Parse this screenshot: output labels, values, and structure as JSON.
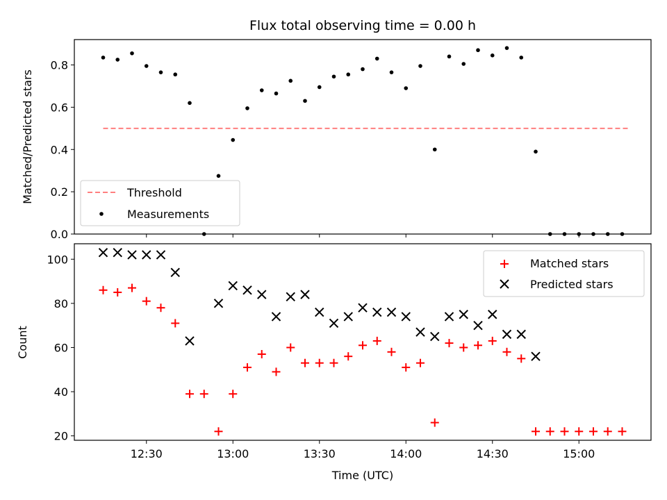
{
  "chart_data": [
    {
      "type": "scatter",
      "title": "Flux total observing time = 0.00 h",
      "ylabel": "Matched/Predicted stars",
      "xlabel": "",
      "ylim": [
        0,
        0.92
      ],
      "yticks": [
        0.0,
        0.2,
        0.4,
        0.6,
        0.8
      ],
      "ytick_labels": [
        "0.0",
        "0.2",
        "0.4",
        "0.6",
        "0.8"
      ],
      "legend_position": "lower-left",
      "threshold": {
        "name": "Threshold",
        "value": 0.5,
        "x_start": "12:15",
        "x_end": "15:17",
        "color": "#ff7f7f",
        "style": "dashed"
      },
      "series": [
        {
          "name": "Measurements",
          "color": "#000000",
          "marker": "dot",
          "points": [
            [
              "12:15",
              0.835
            ],
            [
              "12:20",
              0.825
            ],
            [
              "12:25",
              0.855
            ],
            [
              "12:30",
              0.795
            ],
            [
              "12:35",
              0.765
            ],
            [
              "12:40",
              0.755
            ],
            [
              "12:45",
              0.62
            ],
            [
              "12:50",
              0.0
            ],
            [
              "12:55",
              0.275
            ],
            [
              "13:00",
              0.445
            ],
            [
              "13:05",
              0.595
            ],
            [
              "13:10",
              0.68
            ],
            [
              "13:15",
              0.665
            ],
            [
              "13:20",
              0.725
            ],
            [
              "13:25",
              0.63
            ],
            [
              "13:30",
              0.695
            ],
            [
              "13:35",
              0.745
            ],
            [
              "13:40",
              0.755
            ],
            [
              "13:45",
              0.78
            ],
            [
              "13:50",
              0.83
            ],
            [
              "13:55",
              0.765
            ],
            [
              "14:00",
              0.69
            ],
            [
              "14:05",
              0.795
            ],
            [
              "14:10",
              0.4
            ],
            [
              "14:15",
              0.84
            ],
            [
              "14:20",
              0.805
            ],
            [
              "14:25",
              0.87
            ],
            [
              "14:30",
              0.845
            ],
            [
              "14:35",
              0.88
            ],
            [
              "14:40",
              0.835
            ],
            [
              "14:45",
              0.39
            ],
            [
              "14:50",
              0.0
            ],
            [
              "14:55",
              0.0
            ],
            [
              "15:00",
              0.0
            ],
            [
              "15:05",
              0.0
            ],
            [
              "15:10",
              0.0
            ],
            [
              "15:15",
              0.0
            ]
          ]
        }
      ]
    },
    {
      "type": "scatter",
      "title": "",
      "ylabel": "Count",
      "xlabel": "Time (UTC)",
      "ylim": [
        18,
        107
      ],
      "yticks": [
        20,
        40,
        60,
        80,
        100
      ],
      "ytick_labels": [
        "20",
        "40",
        "60",
        "80",
        "100"
      ],
      "xlim": [
        "12:05",
        "15:25"
      ],
      "xticks": [
        "12:30",
        "13:00",
        "13:30",
        "14:00",
        "14:30",
        "15:00"
      ],
      "xtick_labels": [
        "12:30",
        "13:00",
        "13:30",
        "14:00",
        "14:30",
        "15:00"
      ],
      "legend_position": "top-right",
      "series": [
        {
          "name": "Matched stars",
          "color": "#ff0000",
          "marker": "plus",
          "points": [
            [
              "12:15",
              86
            ],
            [
              "12:20",
              85
            ],
            [
              "12:25",
              87
            ],
            [
              "12:30",
              81
            ],
            [
              "12:35",
              78
            ],
            [
              "12:40",
              71
            ],
            [
              "12:45",
              39
            ],
            [
              "12:50",
              39
            ],
            [
              "12:55",
              22
            ],
            [
              "13:00",
              39
            ],
            [
              "13:05",
              51
            ],
            [
              "13:10",
              57
            ],
            [
              "13:15",
              49
            ],
            [
              "13:20",
              60
            ],
            [
              "13:25",
              53
            ],
            [
              "13:30",
              53
            ],
            [
              "13:35",
              53
            ],
            [
              "13:40",
              56
            ],
            [
              "13:45",
              61
            ],
            [
              "13:50",
              63
            ],
            [
              "13:55",
              58
            ],
            [
              "14:00",
              51
            ],
            [
              "14:05",
              53
            ],
            [
              "14:10",
              26
            ],
            [
              "14:15",
              62
            ],
            [
              "14:20",
              60
            ],
            [
              "14:25",
              61
            ],
            [
              "14:30",
              63
            ],
            [
              "14:35",
              58
            ],
            [
              "14:40",
              55
            ],
            [
              "14:45",
              22
            ],
            [
              "14:50",
              22
            ],
            [
              "14:55",
              22
            ],
            [
              "15:00",
              22
            ],
            [
              "15:05",
              22
            ],
            [
              "15:10",
              22
            ],
            [
              "15:15",
              22
            ]
          ]
        },
        {
          "name": "Predicted stars",
          "color": "#000000",
          "marker": "x",
          "points": [
            [
              "12:15",
              103
            ],
            [
              "12:20",
              103
            ],
            [
              "12:25",
              102
            ],
            [
              "12:30",
              102
            ],
            [
              "12:35",
              102
            ],
            [
              "12:40",
              94
            ],
            [
              "12:45",
              63
            ],
            [
              "12:55",
              80
            ],
            [
              "13:00",
              88
            ],
            [
              "13:05",
              86
            ],
            [
              "13:10",
              84
            ],
            [
              "13:15",
              74
            ],
            [
              "13:20",
              83
            ],
            [
              "13:25",
              84
            ],
            [
              "13:30",
              76
            ],
            [
              "13:35",
              71
            ],
            [
              "13:40",
              74
            ],
            [
              "13:45",
              78
            ],
            [
              "13:50",
              76
            ],
            [
              "13:55",
              76
            ],
            [
              "14:00",
              74
            ],
            [
              "14:05",
              67
            ],
            [
              "14:10",
              65
            ],
            [
              "14:15",
              74
            ],
            [
              "14:20",
              75
            ],
            [
              "14:25",
              70
            ],
            [
              "14:30",
              75
            ],
            [
              "14:35",
              66
            ],
            [
              "14:40",
              66
            ],
            [
              "14:45",
              56
            ]
          ]
        }
      ]
    }
  ]
}
